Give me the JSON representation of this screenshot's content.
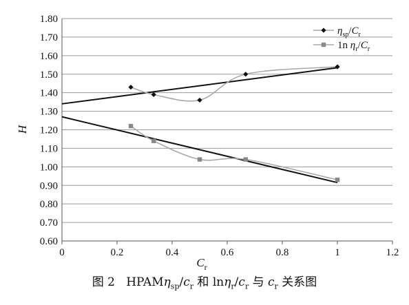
{
  "chart_data": {
    "type": "line",
    "xlabel": "C",
    "xlabel_sub": "r",
    "ylabel": "H",
    "xlim": [
      0,
      1.2
    ],
    "ylim": [
      0.6,
      1.8
    ],
    "x_ticks": [
      "0",
      "0.2",
      "0.4",
      "0.6",
      "0.8",
      "1",
      "1.2"
    ],
    "y_ticks": [
      "0.60",
      "0.70",
      "0.80",
      "0.90",
      "1.00",
      "1.10",
      "1.20",
      "1.30",
      "1.40",
      "1.50",
      "1.60",
      "1.70",
      "1.80"
    ],
    "grid": {
      "horizontal": true,
      "vertical": false
    },
    "legend_position": "top-right",
    "series": [
      {
        "key": "eta_sp",
        "legend": {
          "main": "η",
          "sub": "sp",
          "slash": "/",
          "main2": "C",
          "sub2": "r"
        },
        "marker": "diamond",
        "color": "#111111",
        "x": [
          0.25,
          0.333,
          0.5,
          0.667,
          1.0
        ],
        "y": [
          1.43,
          1.39,
          1.36,
          1.5,
          1.54
        ]
      },
      {
        "key": "ln_eta_r",
        "legend": {
          "pre": "1n ",
          "main": "η",
          "sub": "r",
          "slash": "/",
          "main2": "C",
          "sub2": "r"
        },
        "marker": "square",
        "color": "#888888",
        "x": [
          0.25,
          0.333,
          0.5,
          0.667,
          1.0
        ],
        "y": [
          1.22,
          1.14,
          1.04,
          1.04,
          0.93
        ]
      }
    ],
    "trendlines": [
      {
        "series": "eta_sp",
        "from": [
          0,
          1.34
        ],
        "to": [
          1.0,
          1.535
        ],
        "color": "#111111"
      },
      {
        "series": "ln_eta_r",
        "from": [
          0,
          1.27
        ],
        "to": [
          1.0,
          0.915
        ],
        "color": "#111111"
      }
    ]
  },
  "caption": {
    "figure_no": "图 2",
    "prefix": "HPAM",
    "eta": "η",
    "sp": "sp",
    "slash1": "/",
    "c": "c",
    "r": "r",
    "he": " 和 ",
    "ln": "ln",
    "eta2": "η",
    "r2": "r",
    "slash2": "/",
    "c2": "c",
    "r3": "r",
    "yu": " 与 ",
    "c3": "c",
    "r4": "r",
    "suffix": " 关系图"
  }
}
